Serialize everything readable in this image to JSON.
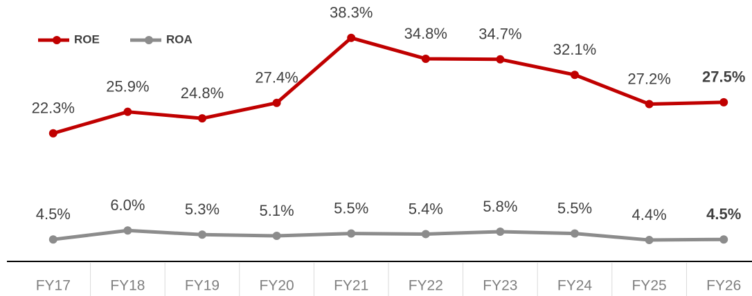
{
  "chart_data": {
    "type": "line",
    "categories": [
      "FY17",
      "FY18",
      "FY19",
      "FY20",
      "FY21",
      "FY22",
      "FY23",
      "FY24",
      "FY25",
      "FY26"
    ],
    "series": [
      {
        "name": "ROE",
        "color": "#c00000",
        "values": [
          22.3,
          25.9,
          24.8,
          27.4,
          38.3,
          34.8,
          34.7,
          32.1,
          27.2,
          27.5
        ],
        "value_labels": [
          "22.3%",
          "25.9%",
          "24.8%",
          "27.4%",
          "38.3%",
          "34.8%",
          "34.7%",
          "32.1%",
          "27.2%",
          "27.5%"
        ]
      },
      {
        "name": "ROA",
        "color": "#8c8c8c",
        "values": [
          4.5,
          6.0,
          5.3,
          5.1,
          5.5,
          5.4,
          5.8,
          5.5,
          4.4,
          4.5
        ],
        "value_labels": [
          "4.5%",
          "6.0%",
          "5.3%",
          "5.1%",
          "5.5%",
          "5.4%",
          "5.8%",
          "5.5%",
          "4.4%",
          "4.5%"
        ]
      }
    ],
    "ylim": [
      0,
      45
    ],
    "legend": "top-left"
  }
}
